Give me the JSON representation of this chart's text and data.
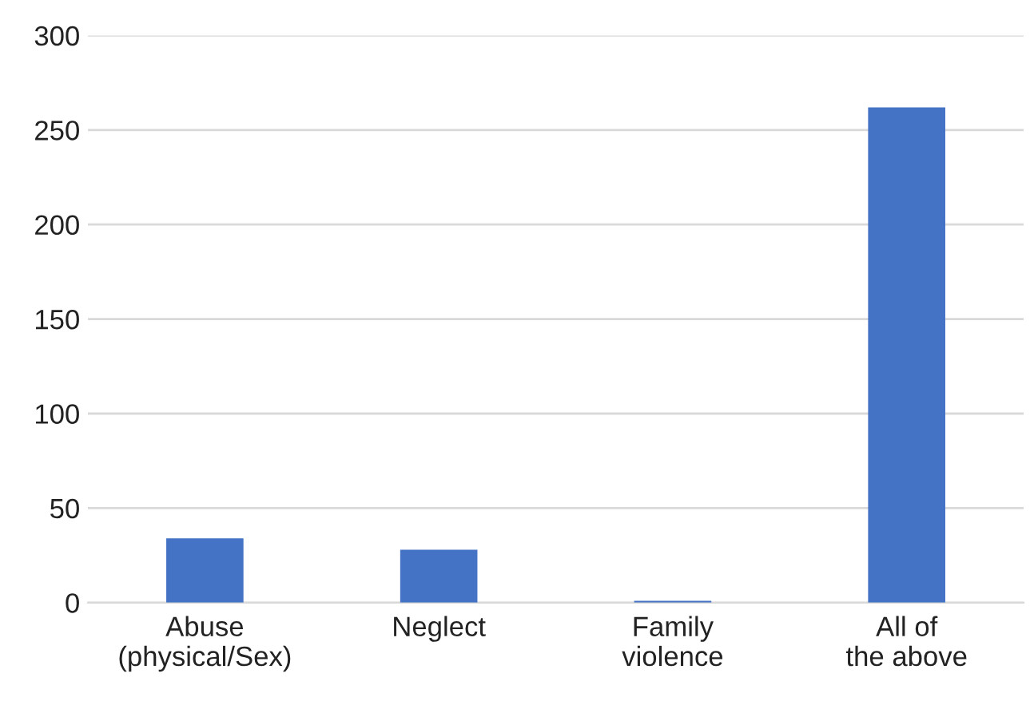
{
  "chart_data": {
    "type": "bar",
    "categories": [
      "Abuse\n(physical/Sex)",
      "Neglect",
      "Family\nviolence",
      "All of\nthe above"
    ],
    "values": [
      34,
      28,
      1,
      262
    ],
    "color": "#4472c4",
    "ylim": [
      0,
      300
    ],
    "yticks": [
      0,
      50,
      100,
      150,
      200,
      250,
      300
    ],
    "grid": "y"
  }
}
